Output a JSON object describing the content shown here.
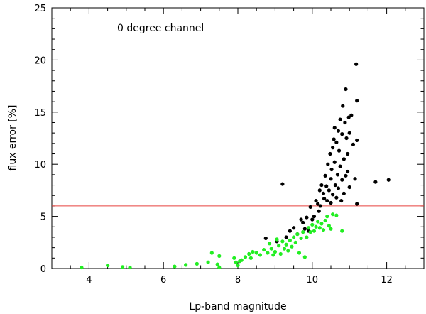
{
  "chart_data": {
    "type": "scatter",
    "title": "",
    "xlabel": "Lp-band magnitude",
    "ylabel": "flux error [%]",
    "annotation": "0 degree channel",
    "xlim": [
      3,
      13
    ],
    "ylim": [
      0,
      25
    ],
    "x_ticks": [
      4,
      6,
      8,
      10,
      12
    ],
    "y_ticks": [
      0,
      5,
      10,
      15,
      20,
      25
    ],
    "grid": false,
    "threshold": {
      "y": 6.0,
      "color": "#e8413d"
    },
    "series": [
      {
        "color": "#000000",
        "points": [
          [
            8.75,
            2.9
          ],
          [
            9.05,
            2.6
          ],
          [
            9.2,
            8.1
          ],
          [
            9.3,
            3.0
          ],
          [
            9.4,
            3.6
          ],
          [
            9.5,
            3.9
          ],
          [
            9.6,
            3.3
          ],
          [
            9.7,
            4.7
          ],
          [
            9.75,
            4.4
          ],
          [
            9.8,
            3.8
          ],
          [
            9.85,
            4.9
          ],
          [
            9.9,
            3.6
          ],
          [
            9.95,
            5.9
          ],
          [
            10.0,
            4.7
          ],
          [
            10.05,
            5.0
          ],
          [
            10.1,
            6.5
          ],
          [
            10.15,
            6.2
          ],
          [
            10.18,
            5.5
          ],
          [
            10.2,
            7.5
          ],
          [
            10.22,
            6.0
          ],
          [
            10.25,
            8.0
          ],
          [
            10.3,
            7.2
          ],
          [
            10.32,
            6.7
          ],
          [
            10.35,
            8.9
          ],
          [
            10.38,
            7.9
          ],
          [
            10.4,
            6.5
          ],
          [
            10.42,
            10.0
          ],
          [
            10.45,
            7.5
          ],
          [
            10.48,
            11.0
          ],
          [
            10.5,
            8.6
          ],
          [
            10.5,
            6.3
          ],
          [
            10.52,
            9.5
          ],
          [
            10.55,
            7.1
          ],
          [
            10.55,
            11.6
          ],
          [
            10.58,
            12.4
          ],
          [
            10.6,
            10.2
          ],
          [
            10.6,
            13.5
          ],
          [
            10.62,
            8.0
          ],
          [
            10.65,
            6.8
          ],
          [
            10.65,
            12.1
          ],
          [
            10.68,
            9.0
          ],
          [
            10.7,
            13.2
          ],
          [
            10.7,
            7.7
          ],
          [
            10.72,
            11.3
          ],
          [
            10.75,
            14.3
          ],
          [
            10.75,
            9.8
          ],
          [
            10.78,
            6.5
          ],
          [
            10.8,
            12.9
          ],
          [
            10.8,
            8.5
          ],
          [
            10.82,
            15.6
          ],
          [
            10.85,
            10.5
          ],
          [
            10.85,
            7.2
          ],
          [
            10.88,
            14.0
          ],
          [
            10.9,
            17.2
          ],
          [
            10.9,
            8.9
          ],
          [
            10.92,
            12.5
          ],
          [
            10.95,
            11.0
          ],
          [
            10.95,
            9.3
          ],
          [
            10.98,
            14.5
          ],
          [
            11.0,
            13.0
          ],
          [
            11.0,
            7.8
          ],
          [
            11.05,
            14.7
          ],
          [
            11.1,
            11.9
          ],
          [
            11.15,
            8.6
          ],
          [
            11.18,
            19.6
          ],
          [
            11.2,
            16.1
          ],
          [
            11.2,
            12.3
          ],
          [
            11.2,
            6.2
          ],
          [
            11.7,
            8.3
          ],
          [
            12.05,
            8.5
          ]
        ]
      },
      {
        "color": "#22ee22",
        "points": [
          [
            3.8,
            0.1
          ],
          [
            4.5,
            0.3
          ],
          [
            4.9,
            0.15
          ],
          [
            5.1,
            0.1
          ],
          [
            6.3,
            0.2
          ],
          [
            6.6,
            0.35
          ],
          [
            6.9,
            0.45
          ],
          [
            7.2,
            0.6
          ],
          [
            7.3,
            1.5
          ],
          [
            7.45,
            0.4
          ],
          [
            7.5,
            1.2
          ],
          [
            7.5,
            0.1
          ],
          [
            7.9,
            1.0
          ],
          [
            7.95,
            0.6
          ],
          [
            8.0,
            0.3
          ],
          [
            8.05,
            0.7
          ],
          [
            8.1,
            0.8
          ],
          [
            8.2,
            1.1
          ],
          [
            8.3,
            1.4
          ],
          [
            8.35,
            1.0
          ],
          [
            8.4,
            1.6
          ],
          [
            8.5,
            1.5
          ],
          [
            8.6,
            1.3
          ],
          [
            8.7,
            1.8
          ],
          [
            8.8,
            1.5
          ],
          [
            8.85,
            2.4
          ],
          [
            8.9,
            1.9
          ],
          [
            8.95,
            1.3
          ],
          [
            9.0,
            1.6
          ],
          [
            9.05,
            2.8
          ],
          [
            9.1,
            2.2
          ],
          [
            9.15,
            1.4
          ],
          [
            9.2,
            2.6
          ],
          [
            9.25,
            1.9
          ],
          [
            9.3,
            2.3
          ],
          [
            9.35,
            1.7
          ],
          [
            9.4,
            2.7
          ],
          [
            9.45,
            2.1
          ],
          [
            9.5,
            3.0
          ],
          [
            9.55,
            2.5
          ],
          [
            9.6,
            3.3
          ],
          [
            9.65,
            1.5
          ],
          [
            9.7,
            2.9
          ],
          [
            9.75,
            3.5
          ],
          [
            9.8,
            1.1
          ],
          [
            9.85,
            3.0
          ],
          [
            9.9,
            3.9
          ],
          [
            9.95,
            3.5
          ],
          [
            10.0,
            4.2
          ],
          [
            10.05,
            3.6
          ],
          [
            10.1,
            4.0
          ],
          [
            10.15,
            4.5
          ],
          [
            10.2,
            3.9
          ],
          [
            10.25,
            4.3
          ],
          [
            10.3,
            3.7
          ],
          [
            10.35,
            4.6
          ],
          [
            10.4,
            5.0
          ],
          [
            10.45,
            4.1
          ],
          [
            10.5,
            3.8
          ],
          [
            10.55,
            5.2
          ],
          [
            10.65,
            5.1
          ],
          [
            10.8,
            3.6
          ]
        ]
      }
    ]
  }
}
